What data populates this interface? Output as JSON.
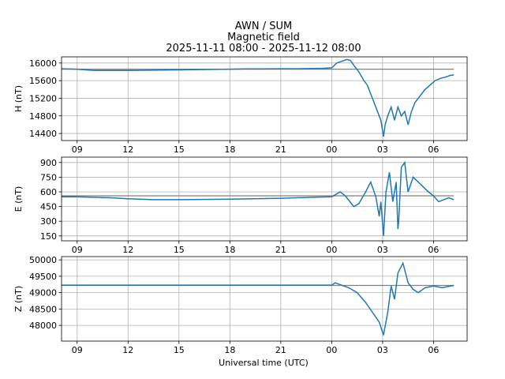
{
  "title": [
    "AWN / SUM",
    "Magnetic field",
    "2025-11-11 08:00 - 2025-11-12 08:00"
  ],
  "xlabel": "Universal time (UTC)",
  "chart_data": [
    {
      "type": "line",
      "ylabel": "H (nT)",
      "grid": true,
      "xlim": [
        8.08,
        31.98
      ],
      "ylim": [
        14240,
        16140
      ],
      "xticks": [
        {
          "value": 9,
          "label": "09"
        },
        12,
        15,
        18,
        21,
        {
          "value": 24,
          "label": "00"
        },
        {
          "value": 27,
          "label": "03"
        },
        {
          "value": 30,
          "label": "06"
        }
      ],
      "yticks": [
        14400,
        14800,
        15200,
        15600,
        16000
      ],
      "series": [
        {
          "color": "#808080",
          "x": [
            8.08,
            31.2
          ],
          "values": [
            15860,
            15860
          ]
        },
        {
          "color": "#1f77b4",
          "x": [
            8.08,
            9,
            10,
            11,
            12,
            13,
            14,
            15,
            16,
            17,
            18,
            19,
            20,
            21,
            22,
            23,
            23.5,
            24,
            24.3,
            24.6,
            24.9,
            25.1,
            25.3,
            25.6,
            25.9,
            26.1,
            26.3,
            26.5,
            26.7,
            26.9,
            27.05,
            27.15,
            27.3,
            27.5,
            27.7,
            27.9,
            28.1,
            28.3,
            28.5,
            28.7,
            28.9,
            29.2,
            29.5,
            29.8,
            30.1,
            30.4,
            30.7,
            31,
            31.2
          ],
          "values": [
            15870,
            15860,
            15830,
            15830,
            15830,
            15835,
            15840,
            15845,
            15850,
            15855,
            15860,
            15865,
            15865,
            15870,
            15870,
            15875,
            15880,
            15890,
            16000,
            16040,
            16080,
            16060,
            15950,
            15800,
            15600,
            15500,
            15300,
            15100,
            14900,
            14700,
            14330,
            14600,
            14800,
            15000,
            14700,
            15000,
            14800,
            14900,
            14600,
            14900,
            15100,
            15250,
            15400,
            15500,
            15600,
            15650,
            15680,
            15720,
            15730
          ]
        }
      ]
    },
    {
      "type": "line",
      "ylabel": "E (nT)",
      "grid": true,
      "xlim": [
        8.08,
        31.98
      ],
      "ylim": [
        100,
        955
      ],
      "xticks": [
        {
          "value": 9,
          "label": "09"
        },
        12,
        15,
        18,
        21,
        {
          "value": 24,
          "label": "00"
        },
        {
          "value": 27,
          "label": "03"
        },
        {
          "value": 30,
          "label": "06"
        }
      ],
      "yticks": [
        150,
        300,
        450,
        600,
        750,
        900
      ],
      "series": [
        {
          "color": "#808080",
          "x": [
            8.08,
            31.2
          ],
          "values": [
            560,
            560
          ]
        },
        {
          "color": "#1f77b4",
          "x": [
            8.08,
            9,
            11,
            12,
            13.5,
            15,
            18,
            21,
            23,
            24,
            24.5,
            24.8,
            25.3,
            25.6,
            26,
            26.3,
            26.6,
            26.8,
            26.9,
            27.05,
            27.2,
            27.4,
            27.6,
            27.8,
            27.9,
            27.95,
            28.1,
            28.3,
            28.5,
            28.8,
            29.1,
            29.4,
            29.7,
            30,
            30.3,
            30.6,
            30.9,
            31.2
          ],
          "values": [
            550,
            550,
            540,
            530,
            520,
            520,
            525,
            535,
            545,
            550,
            600,
            560,
            450,
            480,
            600,
            700,
            550,
            350,
            500,
            150,
            600,
            800,
            500,
            700,
            220,
            300,
            850,
            900,
            600,
            750,
            700,
            650,
            600,
            560,
            500,
            520,
            540,
            520
          ]
        }
      ]
    },
    {
      "type": "line",
      "ylabel": "Z (nT)",
      "grid": true,
      "xlim": [
        8.08,
        31.98
      ],
      "ylim": [
        47520,
        50100
      ],
      "xticks": [
        {
          "value": 9,
          "label": "09"
        },
        12,
        15,
        18,
        21,
        {
          "value": 24,
          "label": "00"
        },
        {
          "value": 27,
          "label": "03"
        },
        {
          "value": 30,
          "label": "06"
        }
      ],
      "yticks": [
        48000,
        48500,
        49000,
        49500,
        50000
      ],
      "series": [
        {
          "color": "#808080",
          "x": [
            8.08,
            31.2
          ],
          "values": [
            49220,
            49220
          ]
        },
        {
          "color": "#1f77b4",
          "x": [
            8.08,
            12,
            16,
            20,
            24,
            24.2,
            25,
            25.5,
            26,
            26.4,
            26.8,
            27.05,
            27.3,
            27.5,
            27.7,
            27.9,
            28.2,
            28.5,
            28.8,
            29.1,
            29.5,
            30,
            30.5,
            31.2
          ],
          "values": [
            49230,
            49230,
            49230,
            49230,
            49230,
            49300,
            49150,
            49000,
            48700,
            48400,
            48100,
            47700,
            48400,
            49200,
            48800,
            49600,
            49900,
            49300,
            49100,
            49000,
            49150,
            49200,
            49150,
            49220
          ]
        }
      ]
    }
  ]
}
